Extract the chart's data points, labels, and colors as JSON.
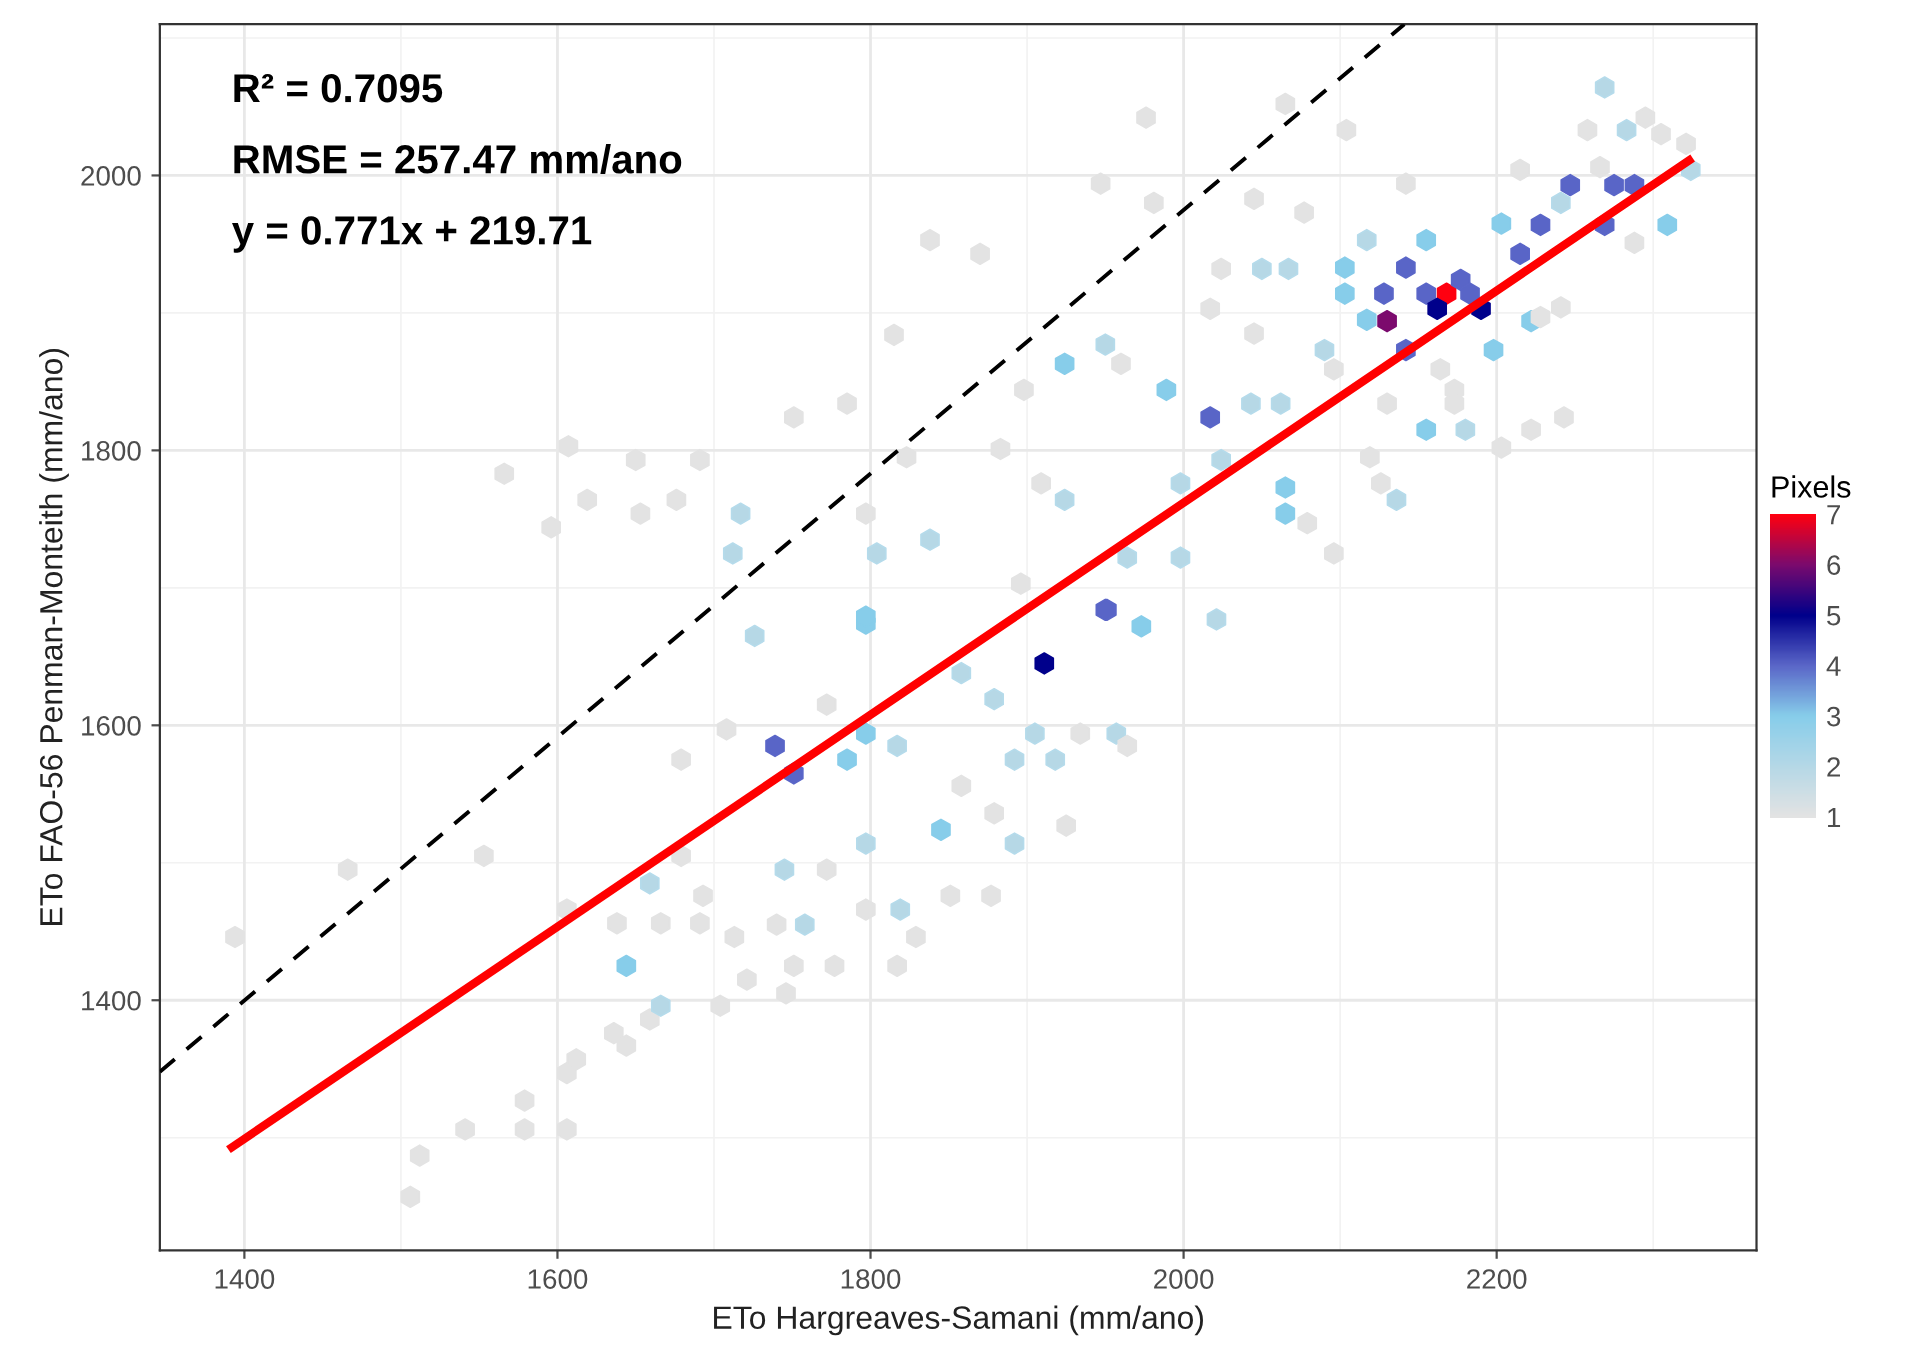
{
  "chart_data": {
    "type": "scatter",
    "xlabel": "ETo Hargreaves-Samani (mm/ano)",
    "ylabel": "ETo FAO-56 Penman-Monteith (mm/ano)",
    "clabel": "Pixels",
    "xlim": [
      1346,
      2366
    ],
    "ylim": [
      1218,
      2110
    ],
    "xticks": [
      1400,
      1600,
      1800,
      2000,
      2200
    ],
    "yticks": [
      1400,
      1600,
      1800,
      2000
    ],
    "clim": [
      1,
      7
    ],
    "cticks": [
      1,
      2,
      3,
      4,
      5,
      6,
      7
    ],
    "grid": true,
    "annotations": [
      "R² = 0.7095",
      "RMSE = 257.47 mm/ano",
      "y = 0.771x + 219.71"
    ],
    "series": [
      {
        "type": "scatter",
        "colors": [
          "#e3e3e3",
          "#e3e3e3",
          "#e3e3e3",
          "#e3e3e3",
          "#e3e3e3",
          "#e3e3e3",
          "#e3e3e3",
          "#e3e3e3",
          "#e3e3e3",
          "#e3e3e3",
          "#e3e3e3",
          "#b5dbeb",
          "#e3e3e3",
          "#87cdea",
          "#e3e3e3",
          "#e3e3e3",
          "#e3e3e3",
          "#e3e3e3",
          "#e3e3e3",
          "#e3e3e3",
          "#e3e3e3",
          "#e3e3e3",
          "#e3e3e3",
          "#b5dbeb",
          "#b5dbeb",
          "#e3e3e3",
          "#e3e3e3",
          "#b5dbeb",
          "#e3e3e3",
          "#b5dbeb",
          "#e3e3e3",
          "#e3e3e3",
          "#e3e3e3",
          "#e3e3e3",
          "#e3e3e3",
          "#e3e3e3",
          "#e3e3e3",
          "#e3e3e3",
          "#e3e3e3",
          "#e3e3e3",
          "#5a66c8",
          "#5a66c8",
          "#87cdea",
          "#87cdea",
          "#b5dbeb",
          "#87cdea",
          "#b5dbeb",
          "#b5dbeb",
          "#00008b",
          "#5a66c8",
          "#87cdea",
          "#b5dbeb",
          "#b5dbeb",
          "#b5dbeb",
          "#b5dbeb",
          "#e3e3e3",
          "#b5dbeb",
          "#e3e3e3",
          "#e3e3e3",
          "#e3e3e3",
          "#e3e3e3",
          "#e3e3e3",
          "#e3e3e3",
          "#b5dbeb",
          "#b5dbeb",
          "#87cdea",
          "#b5dbeb",
          "#b5dbeb",
          "#e3e3e3",
          "#e3e3e3",
          "#5a66c8",
          "#5a66c8",
          "#5a66c8",
          "#b5dbeb",
          "#87cdea",
          "#5a66c8",
          "#5a66c8",
          "#5a66c8",
          "#87cdea",
          "#e3e3e3",
          "#e3e3e3",
          "#e3e3e3",
          "#e3e3e3",
          "#b5dbeb",
          "#e3e3e3",
          "#5a66c8",
          "#5a66c8",
          "#5a66c8",
          "#ff0010",
          "#5a66c8",
          "#00008b",
          "#00008b",
          "#5a66c8",
          "#7a0a6e",
          "#5a66c8",
          "#87cdea",
          "#87cdea",
          "#87cdea",
          "#87cdea",
          "#87cdea",
          "#87cdea",
          "#b5dbeb",
          "#b5dbeb",
          "#87cdea",
          "#b5dbeb",
          "#e3e3e3",
          "#e3e3e3",
          "#e3e3e3",
          "#e3e3e3",
          "#e3e3e3",
          "#e3e3e3",
          "#b5dbeb",
          "#e3e3e3",
          "#e3e3e3",
          "#e3e3e3",
          "#e3e3e3",
          "#e3e3e3",
          "#e3e3e3",
          "#5a66c8",
          "#b5dbeb",
          "#b5dbeb",
          "#87cdea",
          "#87cdea",
          "#b5dbeb",
          "#87cdea",
          "#87cdea",
          "#b5dbeb",
          "#b5dbeb",
          "#e3e3e3",
          "#e3e3e3",
          "#e3e3e3",
          "#e3e3e3",
          "#e3e3e3",
          "#e3e3e3",
          "#e3e3e3",
          "#b5dbeb",
          "#b5dbeb",
          "#e3e3e3",
          "#e3e3e3",
          "#e3e3e3",
          "#e3e3e3",
          "#e3e3e3",
          "#e3e3e3",
          "#e3e3e3",
          "#e3e3e3",
          "#e3e3e3",
          "#b5dbeb",
          "#b5dbeb",
          "#5a66c8",
          "#b5dbeb",
          "#b5dbeb",
          "#e3e3e3",
          "#e3e3e3",
          "#e3e3e3",
          "#e3e3e3",
          "#e3e3e3",
          "#e3e3e3",
          "#e3e3e3",
          "#b5dbeb",
          "#b5dbeb",
          "#b5dbeb",
          "#b5dbeb",
          "#e3e3e3",
          "#e3e3e3",
          "#e3e3e3",
          "#e3e3e3",
          "#e3e3e3",
          "#e3e3e3",
          "#e3e3e3",
          "#e3e3e3",
          "#e3e3e3",
          "#e3e3e3",
          "#87cdea"
        ],
        "x": [
          1506,
          1512,
          1541,
          1579,
          1606,
          1579,
          1606,
          1612,
          1636,
          1644,
          1659,
          1666,
          1704,
          1644,
          1394,
          1466,
          1553,
          1606,
          1638,
          1666,
          1691,
          1713,
          1740,
          1758,
          1659,
          1679,
          1693,
          1745,
          1772,
          1819,
          1797,
          1877,
          1817,
          1777,
          1751,
          1721,
          1746,
          1829,
          1851,
          1679,
          1739,
          1751,
          1797,
          1785,
          1817,
          1845,
          1797,
          1892,
          1911,
          1951,
          1797,
          1905,
          1892,
          1957,
          1918,
          1708,
          1726,
          1772,
          1858,
          1879,
          1934,
          1964,
          1925,
          1879,
          1858,
          1973,
          2269,
          2283,
          2305,
          2321,
          2247,
          2275,
          2288,
          2324,
          2309,
          2269,
          2228,
          2215,
          2203,
          2266,
          2295,
          2258,
          2215,
          2241,
          2288,
          2142,
          2128,
          2155,
          2168,
          2177,
          2162,
          2190,
          2183,
          2130,
          2142,
          2103,
          2103,
          2117,
          2222,
          2198,
          2155,
          2117,
          2090,
          2155,
          2180,
          2173,
          2173,
          2164,
          2243,
          2222,
          2203,
          2136,
          2126,
          2104,
          2142,
          1976,
          2065,
          1947,
          2017,
          2043,
          2062,
          1989,
          1924,
          1950,
          2065,
          2065,
          2024,
          1998,
          1960,
          1898,
          1870,
          1981,
          2045,
          2077,
          2024,
          2050,
          2067,
          2017,
          2045,
          2096,
          2130,
          2228,
          2241,
          2119,
          1909,
          1883,
          1998,
          1924,
          1950,
          1964,
          2021,
          1896,
          2096,
          2079,
          1838,
          1815,
          1785,
          1751,
          1717,
          1712,
          1804,
          1838,
          1797,
          1566,
          1607,
          1619,
          1650,
          1691,
          1596,
          1676,
          1653,
          1823,
          1797
        ],
        "values": [
          1257,
          1287,
          1306,
          1306,
          1306,
          1327,
          1347,
          1357,
          1376,
          1367,
          1386,
          1396,
          1396,
          1425,
          1446,
          1495,
          1505,
          1466,
          1456,
          1456,
          1456,
          1446,
          1455,
          1455,
          1485,
          1505,
          1476,
          1495,
          1495,
          1466,
          1466,
          1476,
          1425,
          1425,
          1425,
          1415,
          1405,
          1446,
          1476,
          1575,
          1585,
          1565,
          1594,
          1575,
          1585,
          1524,
          1514,
          1514,
          1645,
          1684,
          1674,
          1594,
          1575,
          1594,
          1575,
          1597,
          1665,
          1615,
          1556,
          1536,
          1594,
          1585,
          1527,
          1619,
          1638,
          1672,
          2064,
          2033,
          2030,
          2023,
          1993,
          1993,
          1993,
          2004,
          1964,
          1964,
          1964,
          1943,
          1965,
          2006,
          2042,
          2033,
          2004,
          1980,
          1951,
          1933,
          1914,
          1914,
          1914,
          1924,
          1903,
          1903,
          1914,
          1894,
          1873,
          1933,
          1914,
          1895,
          1894,
          1873,
          1953,
          1953,
          1873,
          1815,
          1815,
          1844,
          1834,
          1859,
          1824,
          1815,
          1802,
          1764,
          1776,
          2033,
          1994,
          2042,
          2052,
          1994,
          1824,
          1834,
          1834,
          1844,
          1863,
          1877,
          1773,
          1754,
          1793,
          1776,
          1863,
          1844,
          1943,
          1980,
          1983,
          1973,
          1932,
          1932,
          1932,
          1903,
          1885,
          1859,
          1834,
          1897,
          1904,
          1795,
          1776,
          1801,
          1722,
          1764,
          1684,
          1722,
          1677,
          1703,
          1725,
          1747,
          1953,
          1884,
          1834,
          1824,
          1754,
          1725,
          1725,
          1735,
          1754,
          1783,
          1803,
          1764,
          1793,
          1793,
          1744,
          1764,
          1754,
          1795,
          1679
        ],
        "cvalues": [
          1,
          1,
          1,
          1,
          1,
          1,
          1,
          1,
          1,
          1,
          1,
          2,
          1,
          3,
          1,
          1,
          1,
          1,
          1,
          1,
          1,
          1,
          1,
          2,
          2,
          1,
          1,
          2,
          1,
          2,
          1,
          1,
          1,
          1,
          1,
          1,
          1,
          1,
          1,
          1,
          4,
          4,
          3,
          3,
          2,
          3,
          2,
          2,
          5,
          4,
          3,
          2,
          2,
          2,
          2,
          1,
          2,
          1,
          1,
          1,
          1,
          1,
          1,
          2,
          2,
          3,
          2,
          2,
          1,
          1,
          4,
          4,
          4,
          2,
          3,
          4,
          4,
          4,
          3,
          1,
          1,
          1,
          1,
          2,
          1,
          4,
          4,
          4,
          7,
          4,
          5,
          5,
          4,
          6,
          4,
          3,
          3,
          3,
          3,
          3,
          3,
          2,
          2,
          3,
          2,
          1,
          1,
          1,
          1,
          1,
          1,
          2,
          1,
          1,
          1,
          1,
          1,
          1,
          4,
          2,
          2,
          3,
          3,
          2,
          3,
          3,
          2,
          2,
          1,
          1,
          1,
          1,
          1,
          1,
          1,
          2,
          2,
          1,
          1,
          1,
          1,
          1,
          1,
          1,
          1,
          1,
          2,
          2,
          4,
          2,
          2,
          1,
          1,
          1,
          1,
          1,
          1,
          1,
          2,
          2,
          2,
          2,
          1,
          1,
          1,
          1,
          1,
          1,
          1,
          1,
          1,
          1,
          3
        ]
      },
      {
        "type": "line",
        "color": "#ff0000",
        "x": [
          1392,
          2323
        ],
        "values": [
          1293,
          2011
        ]
      },
      {
        "type": "line",
        "color": "#000000",
        "line_style": "dashed",
        "x": [
          1346,
          2141
        ],
        "values": [
          1348,
          2110
        ]
      }
    ]
  }
}
